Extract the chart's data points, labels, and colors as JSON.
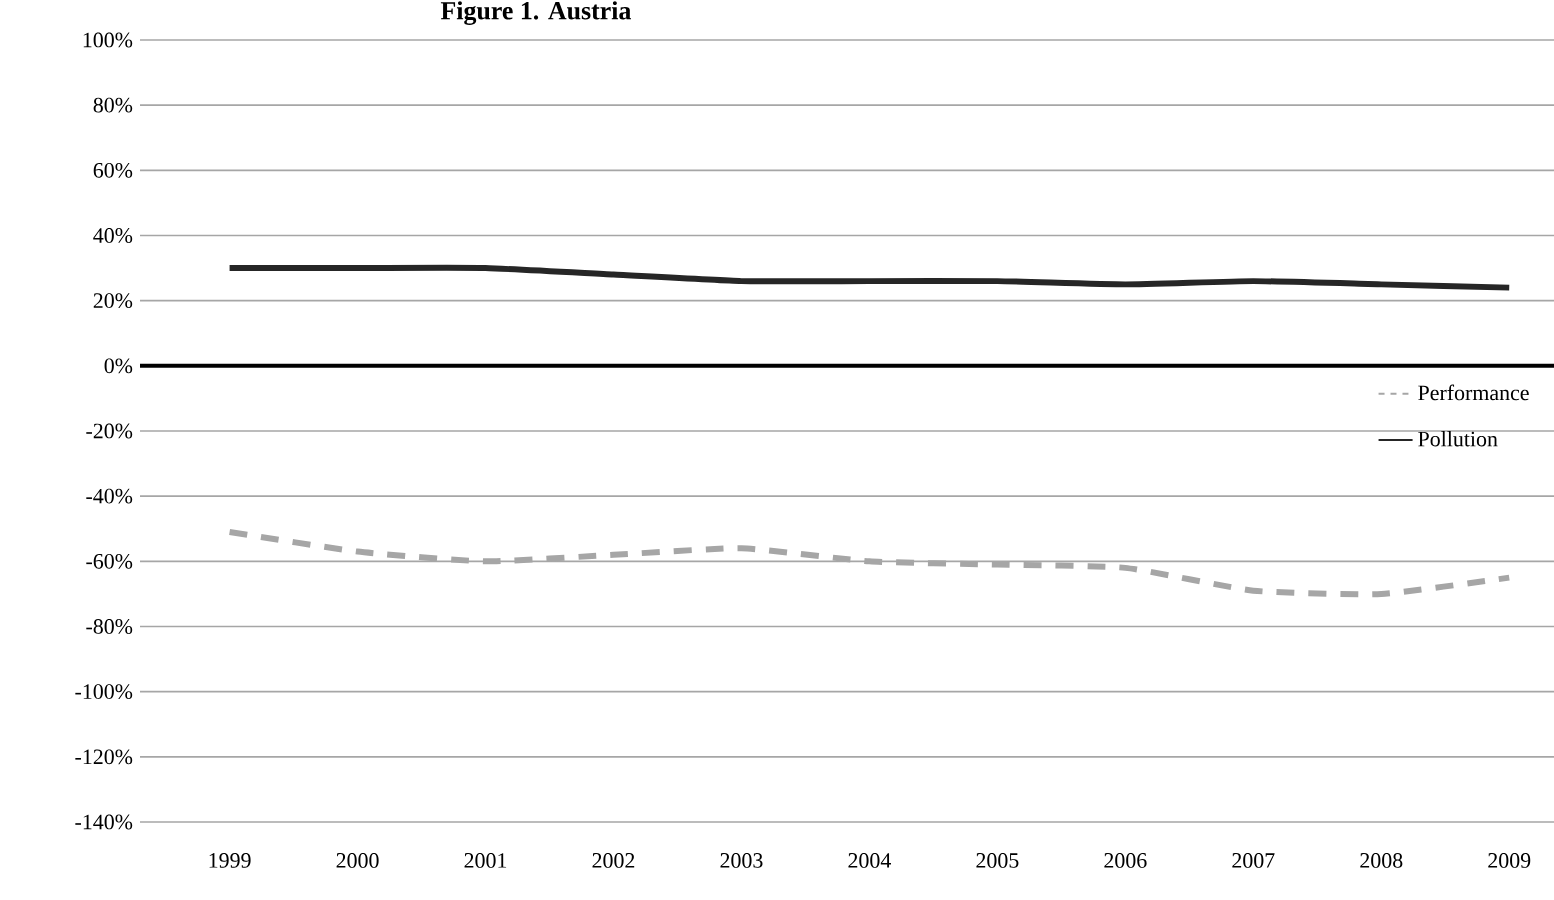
{
  "chart_data": {
    "type": "line",
    "title": "Figure 1. Austria",
    "categories": [
      "1999",
      "2000",
      "2001",
      "2002",
      "2003",
      "2004",
      "2005",
      "2006",
      "2007",
      "2008",
      "2009"
    ],
    "series": [
      {
        "name": "Performance",
        "color": "#a6a6a6",
        "line_style": "dashed",
        "values": [
          -51,
          -57,
          -60,
          -58,
          -56,
          -60,
          -61,
          -62,
          -69,
          -70,
          -65
        ]
      },
      {
        "name": "Pollution",
        "color": "#262626",
        "line_style": "solid",
        "values": [
          30,
          30,
          30,
          28,
          26,
          26,
          26,
          25,
          26,
          25,
          24
        ]
      }
    ],
    "ylim": [
      -140,
      100
    ],
    "yticks": [
      {
        "value": -140,
        "label": "-140%"
      },
      {
        "value": -120,
        "label": "-120%"
      },
      {
        "value": -100,
        "label": "-100%"
      },
      {
        "value": -80,
        "label": "-80%"
      },
      {
        "value": -60,
        "label": "-60%"
      },
      {
        "value": -40,
        "label": "-40%"
      },
      {
        "value": -20,
        "label": "-20%"
      },
      {
        "value": 0,
        "label": "0%"
      },
      {
        "value": 20,
        "label": "20%"
      },
      {
        "value": 40,
        "label": "40%"
      },
      {
        "value": 60,
        "label": "60%"
      },
      {
        "value": 80,
        "label": "80%"
      },
      {
        "value": 100,
        "label": "100%"
      }
    ],
    "grid": "y",
    "legend": "right",
    "marker": "none"
  }
}
